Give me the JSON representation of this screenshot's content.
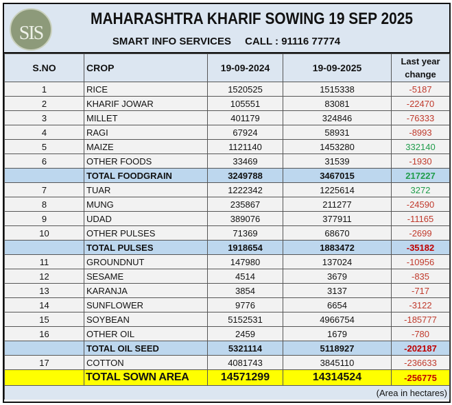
{
  "header": {
    "title": "MAHARASHTRA KHARIF SOWING 19 SEP 2025",
    "company": "SMART INFO SERVICES",
    "call": "CALL : 91116 77774",
    "logo_text": "SIS"
  },
  "table": {
    "columns": [
      "S.NO",
      "CROP",
      "19-09-2024",
      "19-09-2025",
      "Last year change"
    ],
    "rows": [
      {
        "sno": "1",
        "crop": "RICE",
        "y2024": "1520525",
        "y2025": "1515338",
        "change": "-5187",
        "type": "data"
      },
      {
        "sno": "2",
        "crop": "KHARIF JOWAR",
        "y2024": "105551",
        "y2025": "83081",
        "change": "-22470",
        "type": "data"
      },
      {
        "sno": "3",
        "crop": "MILLET",
        "y2024": "401179",
        "y2025": "324846",
        "change": "-76333",
        "type": "data"
      },
      {
        "sno": "4",
        "crop": "RAGI",
        "y2024": "67924",
        "y2025": "58931",
        "change": "-8993",
        "type": "data"
      },
      {
        "sno": "5",
        "crop": "MAIZE",
        "y2024": "1121140",
        "y2025": "1453280",
        "change": "332140",
        "type": "data"
      },
      {
        "sno": "6",
        "crop": "OTHER FOODS",
        "y2024": "33469",
        "y2025": "31539",
        "change": "-1930",
        "type": "data"
      },
      {
        "sno": "",
        "crop": "TOTAL FOODGRAIN",
        "y2024": "3249788",
        "y2025": "3467015",
        "change": "217227",
        "type": "total"
      },
      {
        "sno": "7",
        "crop": "TUAR",
        "y2024": "1222342",
        "y2025": "1225614",
        "change": "3272",
        "type": "data"
      },
      {
        "sno": "8",
        "crop": "MUNG",
        "y2024": "235867",
        "y2025": "211277",
        "change": "-24590",
        "type": "data"
      },
      {
        "sno": "9",
        "crop": "UDAD",
        "y2024": "389076",
        "y2025": "377911",
        "change": "-11165",
        "type": "data"
      },
      {
        "sno": "10",
        "crop": "OTHER PULSES",
        "y2024": "71369",
        "y2025": "68670",
        "change": "-2699",
        "type": "data"
      },
      {
        "sno": "",
        "crop": "TOTAL PULSES",
        "y2024": "1918654",
        "y2025": "1883472",
        "change": "-35182",
        "type": "total"
      },
      {
        "sno": "11",
        "crop": "GROUNDNUT",
        "y2024": "147980",
        "y2025": "137024",
        "change": "-10956",
        "type": "data"
      },
      {
        "sno": "12",
        "crop": "SESAME",
        "y2024": "4514",
        "y2025": "3679",
        "change": "-835",
        "type": "data"
      },
      {
        "sno": "13",
        "crop": "KARANJA",
        "y2024": "3854",
        "y2025": "3137",
        "change": "-717",
        "type": "data"
      },
      {
        "sno": "14",
        "crop": "SUNFLOWER",
        "y2024": "9776",
        "y2025": "6654",
        "change": "-3122",
        "type": "data"
      },
      {
        "sno": "15",
        "crop": "SOYBEAN",
        "y2024": "5152531",
        "y2025": "4966754",
        "change": "-185777",
        "type": "data"
      },
      {
        "sno": "16",
        "crop": "OTHER OIL",
        "y2024": "2459",
        "y2025": "1679",
        "change": "-780",
        "type": "data"
      },
      {
        "sno": "",
        "crop": "TOTAL OIL SEED",
        "y2024": "5321114",
        "y2025": "5118927",
        "change": "-202187",
        "type": "total"
      },
      {
        "sno": "17",
        "crop": "COTTON",
        "y2024": "4081743",
        "y2025": "3845110",
        "change": "-236633",
        "type": "data"
      },
      {
        "sno": "",
        "crop": "TOTAL SOWN AREA",
        "y2024": "14571299",
        "y2025": "14314524",
        "change": "-256775",
        "type": "grand"
      }
    ],
    "footnote": "(Area in hectares)"
  },
  "colors": {
    "header_bg": "#dce6f1",
    "total_bg": "#bdd7ee",
    "grand_bg": "#ffff00",
    "negative": "#c0392b",
    "positive": "#1e9c4a"
  }
}
